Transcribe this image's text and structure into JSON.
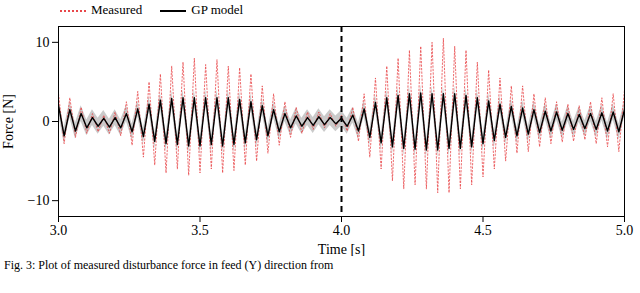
{
  "chart_data": {
    "type": "line",
    "caption": "Fig. 3: Plot of measured disturbance force in feed (Y) direction from",
    "x_label": "Time [s]",
    "y_label": "Force [N]",
    "xlim": [
      3,
      5
    ],
    "ylim": [
      -12,
      12
    ],
    "xticks": [
      {
        "value": 3,
        "label": "3.0"
      },
      {
        "value": 3.5,
        "label": "3.5"
      },
      {
        "value": 4,
        "label": "4.0"
      },
      {
        "value": 4.5,
        "label": "4.5"
      },
      {
        "value": 5,
        "label": "5.0"
      }
    ],
    "yticks": [
      -10,
      0,
      10
    ],
    "grid": false,
    "legend": "upper left",
    "vlines": [
      4
    ],
    "x": [
      3,
      3.02,
      3.04,
      3.06,
      3.08,
      3.1,
      3.12,
      3.14,
      3.16,
      3.18,
      3.2,
      3.22,
      3.24,
      3.26,
      3.28,
      3.3,
      3.32,
      3.34,
      3.36,
      3.38,
      3.4,
      3.42,
      3.44,
      3.46,
      3.48,
      3.5,
      3.52,
      3.54,
      3.56,
      3.58,
      3.6,
      3.62,
      3.64,
      3.66,
      3.68,
      3.7,
      3.72,
      3.74,
      3.76,
      3.78,
      3.8,
      3.82,
      3.84,
      3.86,
      3.88,
      3.9,
      3.92,
      3.94,
      3.96,
      3.98,
      4,
      4.02,
      4.04,
      4.06,
      4.08,
      4.1,
      4.12,
      4.14,
      4.16,
      4.18,
      4.2,
      4.22,
      4.24,
      4.26,
      4.28,
      4.3,
      4.32,
      4.34,
      4.36,
      4.38,
      4.4,
      4.42,
      4.44,
      4.46,
      4.48,
      4.5,
      4.52,
      4.54,
      4.56,
      4.58,
      4.6,
      4.62,
      4.64,
      4.66,
      4.68,
      4.7,
      4.72,
      4.74,
      4.76,
      4.78,
      4.8,
      4.82,
      4.84,
      4.86,
      4.88,
      4.9,
      4.92,
      4.94,
      4.96,
      4.98,
      5
    ],
    "series": [
      {
        "name": "Measured",
        "color": "#e8474a",
        "line_style": "dotted",
        "values": [
          3.5,
          -2.8,
          3.0,
          -2.0,
          1.8,
          -1.5,
          1.0,
          -1.3,
          0.8,
          -1.5,
          1.2,
          -1.8,
          2.5,
          -3.0,
          3.8,
          -4.5,
          5.0,
          -5.5,
          6.0,
          -6.5,
          7.0,
          -6.0,
          7.5,
          -6.8,
          8.0,
          -6.5,
          7.2,
          -6.0,
          7.8,
          -6.5,
          7.0,
          -6.2,
          6.8,
          -5.5,
          6.0,
          -5.0,
          4.5,
          -4.0,
          3.5,
          -3.0,
          2.5,
          -2.0,
          1.8,
          -1.5,
          1.2,
          -1.0,
          1.2,
          -0.8,
          1.0,
          -0.6,
          0.8,
          -1.2,
          1.8,
          -2.5,
          3.5,
          -4.5,
          5.5,
          -6.0,
          7.0,
          -7.5,
          8.0,
          -8.5,
          9.0,
          -8.0,
          9.5,
          -8.5,
          10.0,
          -9.0,
          10.5,
          -9.0,
          9.5,
          -8.5,
          9.0,
          -8.0,
          7.5,
          -7.0,
          6.5,
          -6.0,
          5.5,
          -5.0,
          4.5,
          -4.0,
          4.5,
          -3.8,
          3.5,
          -3.2,
          3.0,
          -2.8,
          2.5,
          -2.6,
          2.2,
          -2.5,
          2.0,
          -2.3,
          2.5,
          -2.8,
          3.0,
          -3.2,
          3.5,
          -3.8,
          4.0
        ]
      },
      {
        "name": "GP model",
        "color": "#000000",
        "line_style": "solid",
        "band": 1.0,
        "values": [
          2.0,
          -1.8,
          1.5,
          -1.2,
          1.0,
          -0.8,
          0.5,
          -0.6,
          0.4,
          -0.7,
          0.5,
          -0.8,
          1.0,
          -1.3,
          1.6,
          -1.9,
          2.2,
          -2.5,
          2.7,
          -2.8,
          2.9,
          -2.9,
          3.0,
          -3.1,
          3.0,
          -3.1,
          3.0,
          -2.9,
          3.0,
          -3.1,
          3.0,
          -2.9,
          2.8,
          -2.7,
          2.5,
          -2.3,
          2.0,
          -1.8,
          1.5,
          -1.3,
          1.0,
          -0.8,
          0.7,
          -0.6,
          0.5,
          -0.5,
          0.6,
          -0.4,
          0.5,
          -0.3,
          0.4,
          -0.6,
          0.8,
          -1.2,
          1.6,
          -2.0,
          2.4,
          -2.7,
          3.0,
          -3.2,
          3.3,
          -3.4,
          3.5,
          -3.5,
          3.6,
          -3.6,
          3.5,
          -3.6,
          3.5,
          -3.4,
          3.5,
          -3.4,
          3.3,
          -3.2,
          3.0,
          -2.8,
          2.6,
          -2.4,
          2.2,
          -2.0,
          1.9,
          -1.8,
          1.7,
          -1.6,
          1.5,
          -1.4,
          1.3,
          -1.2,
          1.2,
          -1.1,
          1.0,
          -1.0,
          0.9,
          -0.9,
          1.0,
          -1.0,
          1.1,
          -1.2,
          1.2,
          -1.3,
          1.5
        ]
      }
    ]
  }
}
